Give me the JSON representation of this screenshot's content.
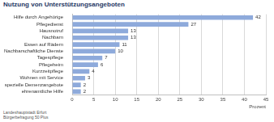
{
  "chart_data": {
    "type": "bar",
    "orientation": "horizontal",
    "title": "Nutzung von Unterstützungsangeboten",
    "xlabel": "Prozent",
    "footnote": [
      "Landeshauptstadt Erfurt",
      "Bürgerbefragung 50 Plus"
    ],
    "categories": [
      "Hilfe durch Angehörige",
      "Pflegedienst",
      "Hausnotruf",
      "Nachbarn",
      "Essen auf Rädern",
      "Nachbarschaftliche Dienste",
      "Tagespflege",
      "Pflegeheim",
      "Kurzzeitpflege",
      "Wohnen mit Service",
      "spezielle Demenzangebote",
      "ehrenamtliche Hilfe"
    ],
    "values": [
      42,
      27,
      13,
      13,
      11,
      10,
      7,
      6,
      4,
      3,
      2,
      2
    ],
    "color": "#8eaadb",
    "xlim": [
      0,
      45
    ],
    "xticks": [
      0,
      5,
      10,
      15,
      20,
      25,
      30,
      35,
      40,
      45
    ],
    "grid": true,
    "data_labels": true
  }
}
